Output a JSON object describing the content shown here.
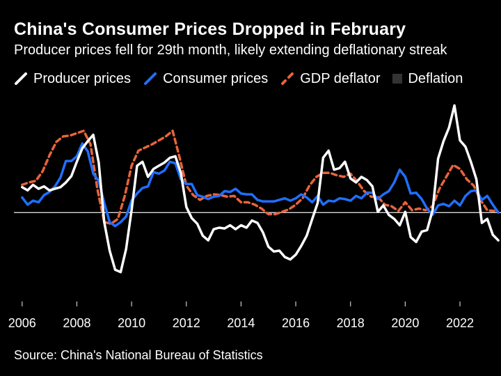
{
  "header": {
    "title": "China's Consumer Prices Dropped in February",
    "subtitle": "Producer prices fell for 29th month, likely extending deflationary streak"
  },
  "legend": [
    {
      "label": "Producer prices",
      "color": "#ffffff",
      "style": "solid"
    },
    {
      "label": "Consumer prices",
      "color": "#1f6fff",
      "style": "solid"
    },
    {
      "label": "GDP deflator",
      "color": "#e8643a",
      "style": "dashed"
    },
    {
      "label": "Deflation",
      "color": "#333333",
      "style": "square"
    }
  ],
  "source": "Source: China's National Bureau of Statistics",
  "chart_data": {
    "type": "line",
    "title": "China's Consumer Prices Dropped in February",
    "xlabel": "",
    "ylabel": "",
    "xlim": [
      2005.7,
      2023.5
    ],
    "ylim": [
      -10.5,
      14.5
    ],
    "zero_line": true,
    "grid": false,
    "xticks": [
      2006,
      2008,
      2010,
      2012,
      2014,
      2016,
      2018,
      2020,
      2022
    ],
    "xtick_labels": [
      "2006",
      "2008",
      "2010",
      "2012",
      "2014",
      "2016",
      "2018",
      "2020",
      "2022"
    ],
    "series": [
      {
        "name": "Producer prices",
        "color": "#ffffff",
        "dash": "solid",
        "x": [
          2006.0,
          2006.2,
          2006.4,
          2006.6,
          2006.8,
          2007.0,
          2007.2,
          2007.4,
          2007.6,
          2007.8,
          2008.0,
          2008.2,
          2008.4,
          2008.6,
          2008.8,
          2009.0,
          2009.2,
          2009.4,
          2009.6,
          2009.8,
          2010.0,
          2010.2,
          2010.4,
          2010.6,
          2010.8,
          2011.0,
          2011.2,
          2011.4,
          2011.6,
          2011.8,
          2012.0,
          2012.2,
          2012.4,
          2012.6,
          2012.8,
          2013.0,
          2013.2,
          2013.4,
          2013.6,
          2013.8,
          2014.0,
          2014.2,
          2014.4,
          2014.6,
          2014.8,
          2015.0,
          2015.2,
          2015.4,
          2015.6,
          2015.8,
          2016.0,
          2016.2,
          2016.4,
          2016.6,
          2016.8,
          2017.0,
          2017.2,
          2017.4,
          2017.6,
          2017.8,
          2018.0,
          2018.2,
          2018.4,
          2018.6,
          2018.8,
          2019.0,
          2019.2,
          2019.4,
          2019.6,
          2019.8,
          2020.0,
          2020.2,
          2020.4,
          2020.6,
          2020.8,
          2021.0,
          2021.2,
          2021.4,
          2021.6,
          2021.8,
          2022.0,
          2022.2,
          2022.4,
          2022.6,
          2022.8,
          2023.0,
          2023.2,
          2023.4
        ],
        "values": [
          3.2,
          2.8,
          3.5,
          3.0,
          3.3,
          2.8,
          3.0,
          3.2,
          3.8,
          4.6,
          6.4,
          8.1,
          9.0,
          9.8,
          6.3,
          -1.2,
          -4.8,
          -7.2,
          -7.5,
          -4.6,
          0.3,
          5.9,
          6.4,
          4.5,
          5.5,
          5.9,
          6.3,
          6.9,
          7.1,
          5.0,
          0.7,
          -0.7,
          -1.4,
          -2.9,
          -3.5,
          -2.1,
          -1.9,
          -2.0,
          -1.6,
          -2.1,
          -1.6,
          -1.9,
          -1.0,
          -1.3,
          -2.5,
          -4.3,
          -4.9,
          -4.8,
          -5.6,
          -5.9,
          -5.3,
          -4.2,
          -2.9,
          -0.8,
          1.2,
          6.9,
          7.8,
          5.4,
          5.6,
          6.4,
          4.3,
          3.8,
          4.5,
          4.1,
          3.3,
          0.1,
          0.9,
          -0.3,
          -0.8,
          -1.6,
          0.1,
          -3.1,
          -3.7,
          -2.4,
          -2.2,
          0.3,
          6.8,
          9.0,
          10.7,
          13.5,
          9.1,
          8.3,
          6.4,
          4.2,
          -1.3,
          -0.8,
          -2.8,
          -3.5
        ]
      },
      {
        "name": "Consumer prices",
        "color": "#1f6fff",
        "dash": "solid",
        "x": [
          2006.0,
          2006.2,
          2006.4,
          2006.6,
          2006.8,
          2007.0,
          2007.2,
          2007.4,
          2007.6,
          2007.8,
          2008.0,
          2008.2,
          2008.4,
          2008.6,
          2008.8,
          2009.0,
          2009.2,
          2009.4,
          2009.6,
          2009.8,
          2010.0,
          2010.2,
          2010.4,
          2010.6,
          2010.8,
          2011.0,
          2011.2,
          2011.4,
          2011.6,
          2011.8,
          2012.0,
          2012.2,
          2012.4,
          2012.6,
          2012.8,
          2013.0,
          2013.2,
          2013.4,
          2013.6,
          2013.8,
          2014.0,
          2014.2,
          2014.4,
          2014.6,
          2014.8,
          2015.0,
          2015.2,
          2015.4,
          2015.6,
          2015.8,
          2016.0,
          2016.2,
          2016.4,
          2016.6,
          2016.8,
          2017.0,
          2017.2,
          2017.4,
          2017.6,
          2017.8,
          2018.0,
          2018.2,
          2018.4,
          2018.6,
          2018.8,
          2019.0,
          2019.2,
          2019.4,
          2019.6,
          2019.8,
          2020.0,
          2020.2,
          2020.4,
          2020.6,
          2020.8,
          2021.0,
          2021.2,
          2021.4,
          2021.6,
          2021.8,
          2022.0,
          2022.2,
          2022.4,
          2022.6,
          2022.8,
          2023.0,
          2023.2,
          2023.4
        ],
        "values": [
          1.9,
          1.0,
          1.5,
          1.3,
          2.2,
          2.6,
          3.3,
          4.4,
          6.5,
          6.5,
          7.1,
          8.7,
          7.7,
          4.9,
          4.0,
          1.2,
          -1.2,
          -1.7,
          -1.2,
          -0.5,
          1.5,
          2.4,
          3.1,
          3.3,
          5.1,
          4.9,
          5.3,
          6.4,
          6.2,
          4.2,
          3.6,
          3.6,
          2.2,
          2.0,
          1.7,
          2.0,
          2.1,
          2.7,
          2.6,
          3.0,
          2.4,
          2.3,
          2.3,
          1.6,
          1.4,
          1.4,
          1.4,
          1.6,
          1.8,
          1.5,
          1.8,
          2.3,
          1.9,
          1.3,
          2.1,
          1.0,
          1.5,
          1.4,
          1.8,
          1.7,
          1.5,
          2.1,
          1.8,
          2.5,
          2.5,
          1.7,
          2.3,
          2.7,
          3.8,
          5.4,
          4.5,
          2.4,
          2.5,
          1.7,
          0.5,
          -0.3,
          0.9,
          1.1,
          0.8,
          1.5,
          0.9,
          2.1,
          2.7,
          2.8,
          1.6,
          2.1,
          1.0,
          0.0
        ]
      },
      {
        "name": "GDP deflator",
        "color": "#e8643a",
        "dash": "dashed",
        "x": [
          2006.0,
          2006.25,
          2006.5,
          2006.75,
          2007.0,
          2007.25,
          2007.5,
          2007.75,
          2008.0,
          2008.25,
          2008.5,
          2008.75,
          2009.0,
          2009.25,
          2009.5,
          2009.75,
          2010.0,
          2010.25,
          2010.5,
          2010.75,
          2011.0,
          2011.25,
          2011.5,
          2011.75,
          2012.0,
          2012.25,
          2012.5,
          2012.75,
          2013.0,
          2013.25,
          2013.5,
          2013.75,
          2014.0,
          2014.25,
          2014.5,
          2014.75,
          2015.0,
          2015.25,
          2015.5,
          2015.75,
          2016.0,
          2016.25,
          2016.5,
          2016.75,
          2017.0,
          2017.25,
          2017.5,
          2017.75,
          2018.0,
          2018.25,
          2018.5,
          2018.75,
          2019.0,
          2019.25,
          2019.5,
          2019.75,
          2020.0,
          2020.25,
          2020.5,
          2020.75,
          2021.0,
          2021.25,
          2021.5,
          2021.75,
          2022.0,
          2022.25,
          2022.5,
          2022.75,
          2023.0,
          2023.25
        ],
        "values": [
          3.5,
          3.8,
          4.0,
          5.2,
          7.2,
          8.9,
          9.6,
          9.7,
          10.0,
          10.3,
          8.6,
          3.0,
          -1.2,
          -1.4,
          -0.8,
          2.1,
          5.9,
          7.8,
          8.2,
          8.6,
          9.1,
          9.6,
          10.3,
          7.0,
          3.4,
          2.2,
          1.6,
          2.1,
          2.3,
          2.2,
          2.0,
          2.1,
          1.3,
          1.3,
          1.0,
          0.5,
          -0.2,
          -0.2,
          0.1,
          0.4,
          1.0,
          1.8,
          3.4,
          4.5,
          5.0,
          5.0,
          4.7,
          4.5,
          4.9,
          3.9,
          2.7,
          2.0,
          2.0,
          1.0,
          0.8,
          0.2,
          1.3,
          0.3,
          0.5,
          0.3,
          0.8,
          3.0,
          4.5,
          6.0,
          5.5,
          4.2,
          3.4,
          1.6,
          0.3,
          0.2
        ]
      }
    ]
  }
}
